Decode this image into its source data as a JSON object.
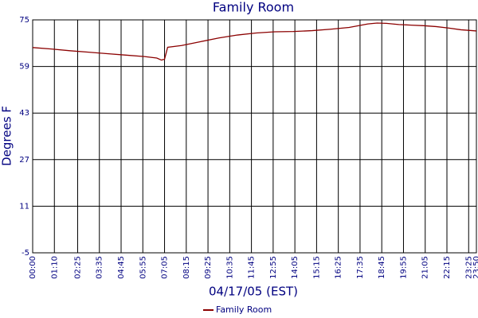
{
  "chart_data": {
    "type": "line",
    "title": "Family Room",
    "x_label": "04/17/05 (EST)",
    "y_label": "Degrees F",
    "x": [
      0,
      60,
      120,
      180,
      240,
      300,
      360,
      400,
      415,
      425,
      435,
      480,
      540,
      600,
      660,
      720,
      780,
      840,
      900,
      960,
      1020,
      1080,
      1110,
      1140,
      1180,
      1220,
      1260,
      1300,
      1340,
      1380,
      1430
    ],
    "series": [
      {
        "name": "Family Room",
        "color": "#8b0000",
        "values": [
          65.5,
          65,
          64.4,
          63.9,
          63.4,
          62.9,
          62.4,
          61.9,
          61.2,
          61.5,
          65.6,
          66.2,
          67.5,
          68.8,
          69.8,
          70.5,
          70.9,
          71,
          71.3,
          71.8,
          72.4,
          73.6,
          73.9,
          73.8,
          73.4,
          73.2,
          73,
          72.7,
          72.2,
          71.6,
          71.2
        ]
      }
    ],
    "xlim": [
      0,
      1430
    ],
    "xticks": [
      {
        "value": 0,
        "label": "00:00"
      },
      {
        "value": 70,
        "label": "01:10"
      },
      {
        "value": 145,
        "label": "02:25"
      },
      {
        "value": 215,
        "label": "03:35"
      },
      {
        "value": 285,
        "label": "04:45"
      },
      {
        "value": 355,
        "label": "05:55"
      },
      {
        "value": 425,
        "label": "07:05"
      },
      {
        "value": 495,
        "label": "08:15"
      },
      {
        "value": 565,
        "label": "09:25"
      },
      {
        "value": 635,
        "label": "10:35"
      },
      {
        "value": 705,
        "label": "11:45"
      },
      {
        "value": 775,
        "label": "12:55"
      },
      {
        "value": 845,
        "label": "14:05"
      },
      {
        "value": 915,
        "label": "15:15"
      },
      {
        "value": 985,
        "label": "16:25"
      },
      {
        "value": 1055,
        "label": "17:35"
      },
      {
        "value": 1125,
        "label": "18:45"
      },
      {
        "value": 1195,
        "label": "19:55"
      },
      {
        "value": 1265,
        "label": "21:05"
      },
      {
        "value": 1335,
        "label": "22:15"
      },
      {
        "value": 1405,
        "label": "23:25"
      },
      {
        "value": 1430,
        "label": "23:50"
      }
    ],
    "ylim": [
      -5,
      75
    ],
    "yticks": [
      -5,
      11,
      27,
      43,
      59,
      75
    ],
    "grid": true,
    "legend": "bottom"
  }
}
